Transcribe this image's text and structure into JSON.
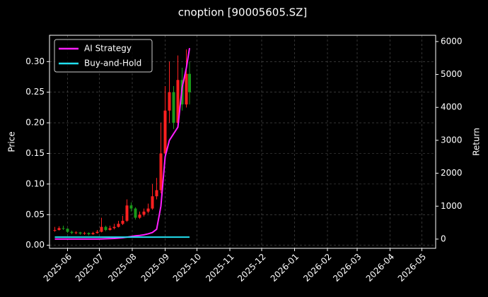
{
  "chart_data": {
    "type": "candlestick",
    "title": "cnoption [90005605.SZ]",
    "ylabel": "Price",
    "y2label": "Return",
    "x": [
      "2025-05-20",
      "2025-05-24",
      "2025-05-28",
      "2025-06-01",
      "2025-06-05",
      "2025-06-09",
      "2025-06-13",
      "2025-06-17",
      "2025-06-21",
      "2025-06-25",
      "2025-06-29",
      "2025-07-03",
      "2025-07-07",
      "2025-07-11",
      "2025-07-15",
      "2025-07-19",
      "2025-07-23",
      "2025-07-27",
      "2025-07-31",
      "2025-08-04",
      "2025-08-08",
      "2025-08-12",
      "2025-08-16",
      "2025-08-20",
      "2025-08-24",
      "2025-08-28",
      "2025-09-01",
      "2025-09-05",
      "2025-09-09",
      "2025-09-13",
      "2025-09-17",
      "2025-09-21",
      "2025-09-24"
    ],
    "open": [
      0.024,
      0.025,
      0.028,
      0.027,
      0.022,
      0.02,
      0.021,
      0.019,
      0.02,
      0.018,
      0.02,
      0.022,
      0.03,
      0.025,
      0.028,
      0.03,
      0.035,
      0.04,
      0.065,
      0.06,
      0.045,
      0.05,
      0.055,
      0.06,
      0.08,
      0.09,
      0.15,
      0.22,
      0.25,
      0.2,
      0.27,
      0.23,
      0.28
    ],
    "high": [
      0.03,
      0.031,
      0.032,
      0.028,
      0.024,
      0.023,
      0.022,
      0.022,
      0.021,
      0.022,
      0.025,
      0.045,
      0.032,
      0.032,
      0.035,
      0.04,
      0.048,
      0.075,
      0.07,
      0.062,
      0.055,
      0.06,
      0.068,
      0.1,
      0.11,
      0.2,
      0.26,
      0.3,
      0.26,
      0.31,
      0.29,
      0.32,
      0.3
    ],
    "low": [
      0.022,
      0.024,
      0.025,
      0.02,
      0.018,
      0.018,
      0.017,
      0.017,
      0.016,
      0.017,
      0.019,
      0.021,
      0.023,
      0.024,
      0.026,
      0.029,
      0.033,
      0.038,
      0.055,
      0.042,
      0.043,
      0.047,
      0.052,
      0.058,
      0.075,
      0.085,
      0.14,
      0.2,
      0.19,
      0.195,
      0.22,
      0.225,
      0.23
    ],
    "close": [
      0.025,
      0.028,
      0.027,
      0.022,
      0.02,
      0.021,
      0.019,
      0.02,
      0.018,
      0.02,
      0.022,
      0.03,
      0.025,
      0.028,
      0.03,
      0.035,
      0.04,
      0.065,
      0.06,
      0.045,
      0.05,
      0.055,
      0.06,
      0.08,
      0.09,
      0.15,
      0.22,
      0.25,
      0.2,
      0.27,
      0.23,
      0.28,
      0.25
    ],
    "up_color": "#ff2020",
    "down_color": "#1a9a1a",
    "series": [
      {
        "name": "AI Strategy",
        "color": "#ff1fff",
        "axis": "y2",
        "values": [
          0,
          0,
          0,
          0,
          0,
          0,
          0,
          0,
          0,
          0,
          0,
          5,
          10,
          15,
          20,
          30,
          40,
          60,
          80,
          100,
          110,
          130,
          160,
          200,
          300,
          1000,
          2500,
          3000,
          3200,
          3400,
          4600,
          5200,
          5800
        ]
      },
      {
        "name": "Buy-and-Hold",
        "color": "#22e0f0",
        "axis": "y2",
        "values": [
          60,
          60,
          60,
          60,
          60,
          60,
          60,
          60,
          60,
          60,
          60,
          60,
          60,
          60,
          60,
          60,
          60,
          60,
          60,
          60,
          60,
          60,
          60,
          60,
          60,
          60,
          60,
          60,
          60,
          60,
          60,
          60,
          60
        ]
      }
    ],
    "xlim": [
      "2025-05-15",
      "2026-05-14"
    ],
    "xticks": [
      {
        "value": "2025-06-01",
        "label": "2025-06"
      },
      {
        "value": "2025-07-01",
        "label": "2025-07"
      },
      {
        "value": "2025-08-01",
        "label": "2025-08"
      },
      {
        "value": "2025-09-01",
        "label": "2025-09"
      },
      {
        "value": "2025-10-01",
        "label": "2025-10"
      },
      {
        "value": "2025-11-01",
        "label": "2025-11"
      },
      {
        "value": "2025-12-01",
        "label": "2025-12"
      },
      {
        "value": "2026-01-01",
        "label": "2026-01"
      },
      {
        "value": "2026-02-01",
        "label": "2026-02"
      },
      {
        "value": "2026-03-01",
        "label": "2026-03"
      },
      {
        "value": "2026-04-01",
        "label": "2026-04"
      },
      {
        "value": "2026-05-01",
        "label": "2026-05"
      }
    ],
    "ylim": [
      -0.005,
      0.343
    ],
    "yticks": [
      {
        "value": 0,
        "label": "0.00"
      },
      {
        "value": 0.05,
        "label": "0.05"
      },
      {
        "value": 0.1,
        "label": "0.10"
      },
      {
        "value": 0.15,
        "label": "0.15"
      },
      {
        "value": 0.2,
        "label": "0.20"
      },
      {
        "value": 0.25,
        "label": "0.25"
      },
      {
        "value": 0.3,
        "label": "0.30"
      }
    ],
    "y2lim": [
      -280,
      6190
    ],
    "y2ticks": [
      0,
      1000,
      2000,
      3000,
      4000,
      5000,
      6000
    ],
    "grid": true,
    "legend": "upper left"
  }
}
